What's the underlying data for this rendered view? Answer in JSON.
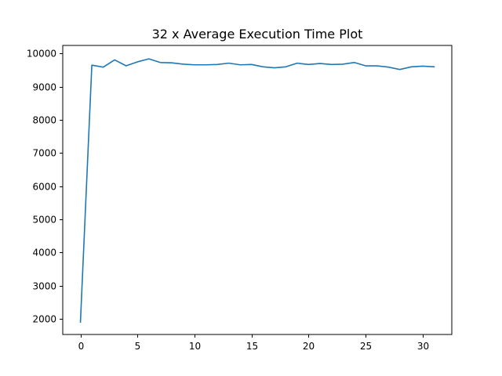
{
  "chart_data": {
    "type": "line",
    "title": "32 x Average Execution Time Plot",
    "xlabel": "",
    "ylabel": "",
    "xlim": [
      -1.55,
      32.55
    ],
    "ylim": [
      1525,
      10245
    ],
    "xticks": [
      0,
      5,
      10,
      15,
      20,
      25,
      30
    ],
    "yticks": [
      2000,
      3000,
      4000,
      5000,
      6000,
      7000,
      8000,
      9000,
      10000
    ],
    "grid": false,
    "series": [
      {
        "color": "#1f77b4",
        "x": [
          0,
          1,
          2,
          3,
          4,
          5,
          6,
          7,
          8,
          9,
          10,
          11,
          12,
          13,
          14,
          15,
          16,
          17,
          18,
          19,
          20,
          21,
          22,
          23,
          24,
          25,
          26,
          27,
          28,
          29,
          30,
          31
        ],
        "values": [
          1900,
          9650,
          9590,
          9810,
          9630,
          9750,
          9840,
          9730,
          9720,
          9680,
          9660,
          9660,
          9670,
          9710,
          9660,
          9670,
          9600,
          9570,
          9600,
          9710,
          9670,
          9700,
          9670,
          9680,
          9730,
          9630,
          9630,
          9590,
          9520,
          9600,
          9620,
          9600
        ]
      }
    ]
  }
}
